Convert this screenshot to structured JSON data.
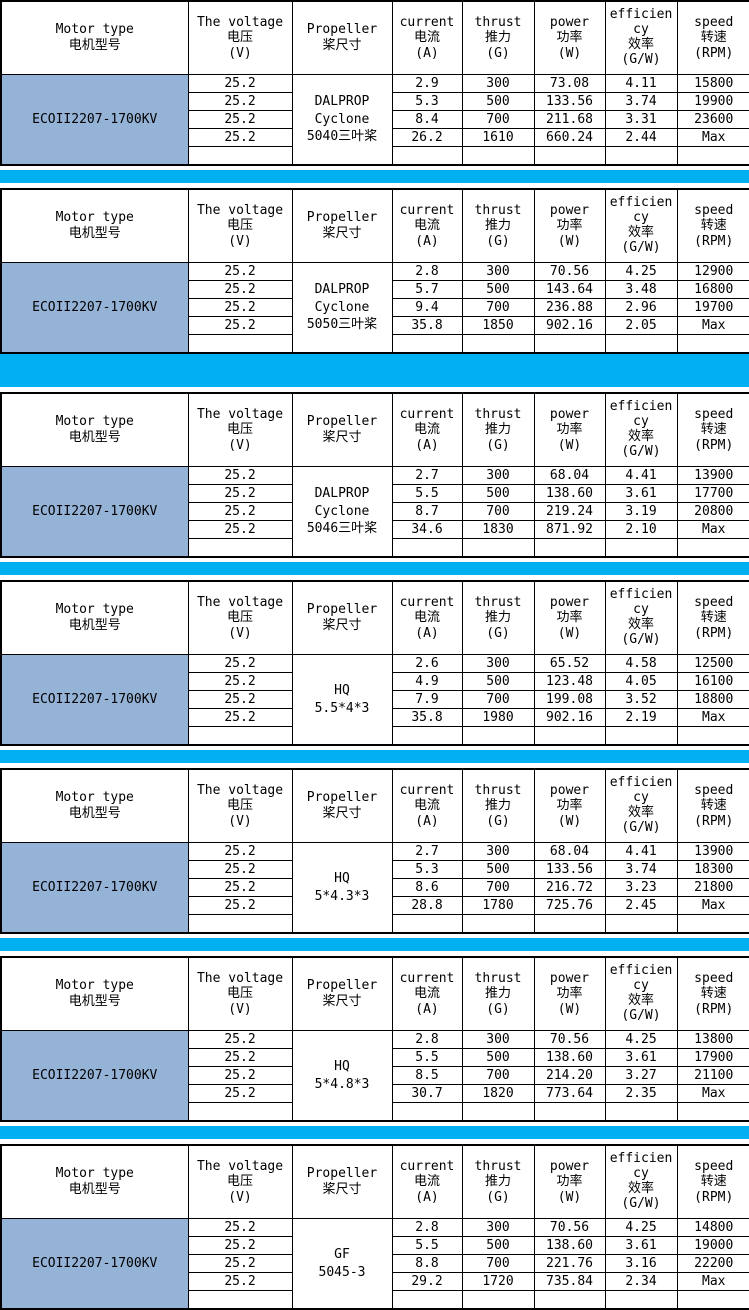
{
  "colors": {
    "separator_cyan": "#00b0f0",
    "motor_cell_blue": "#95b3d7",
    "border_black": "#000000",
    "background_white": "#ffffff"
  },
  "header": {
    "columns": [
      {
        "id": "motor",
        "lines": [
          "Motor type",
          "电机型号"
        ]
      },
      {
        "id": "voltage",
        "lines": [
          "The voltage",
          "电压",
          "(V)"
        ]
      },
      {
        "id": "propeller",
        "lines": [
          "Propeller",
          "桨尺寸"
        ]
      },
      {
        "id": "current",
        "lines": [
          "current",
          "电流",
          "(A)"
        ]
      },
      {
        "id": "thrust",
        "lines": [
          "thrust",
          "推力",
          "(G)"
        ]
      },
      {
        "id": "power",
        "lines": [
          "power",
          "功率",
          "(W)"
        ]
      },
      {
        "id": "efficiency",
        "lines": [
          "efficien",
          "cy",
          "效率",
          "(G/W)"
        ]
      },
      {
        "id": "speed",
        "lines": [
          "speed",
          "转速",
          "(RPM)"
        ]
      }
    ]
  },
  "tables": [
    {
      "motor": "ECOII2207-1700KV",
      "propeller_lines": [
        "DALPROP",
        "Cyclone",
        "5040三叶桨"
      ],
      "rows": [
        {
          "voltage": "25.2",
          "current": "2.9",
          "thrust": "300",
          "power": "73.08",
          "efficiency": "4.11",
          "speed": "15800"
        },
        {
          "voltage": "25.2",
          "current": "5.3",
          "thrust": "500",
          "power": "133.56",
          "efficiency": "3.74",
          "speed": "19900"
        },
        {
          "voltage": "25.2",
          "current": "8.4",
          "thrust": "700",
          "power": "211.68",
          "efficiency": "3.31",
          "speed": "23600"
        },
        {
          "voltage": "25.2",
          "current": "26.2",
          "thrust": "1610",
          "power": "660.24",
          "efficiency": "2.44",
          "speed": "Max"
        }
      ]
    },
    {
      "motor": "ECOII2207-1700KV",
      "propeller_lines": [
        "DALPROP",
        "Cyclone",
        "5050三叶桨"
      ],
      "rows": [
        {
          "voltage": "25.2",
          "current": "2.8",
          "thrust": "300",
          "power": "70.56",
          "efficiency": "4.25",
          "speed": "12900"
        },
        {
          "voltage": "25.2",
          "current": "5.7",
          "thrust": "500",
          "power": "143.64",
          "efficiency": "3.48",
          "speed": "16800"
        },
        {
          "voltage": "25.2",
          "current": "9.4",
          "thrust": "700",
          "power": "236.88",
          "efficiency": "2.96",
          "speed": "19700"
        },
        {
          "voltage": "25.2",
          "current": "35.8",
          "thrust": "1850",
          "power": "902.16",
          "efficiency": "2.05",
          "speed": "Max"
        }
      ]
    },
    {
      "motor": "ECOII2207-1700KV",
      "propeller_lines": [
        "DALPROP",
        "Cyclone",
        "5046三叶桨"
      ],
      "rows": [
        {
          "voltage": "25.2",
          "current": "2.7",
          "thrust": "300",
          "power": "68.04",
          "efficiency": "4.41",
          "speed": "13900"
        },
        {
          "voltage": "25.2",
          "current": "5.5",
          "thrust": "500",
          "power": "138.60",
          "efficiency": "3.61",
          "speed": "17700"
        },
        {
          "voltage": "25.2",
          "current": "8.7",
          "thrust": "700",
          "power": "219.24",
          "efficiency": "3.19",
          "speed": "20800"
        },
        {
          "voltage": "25.2",
          "current": "34.6",
          "thrust": "1830",
          "power": "871.92",
          "efficiency": "2.10",
          "speed": "Max"
        }
      ]
    },
    {
      "motor": "ECOII2207-1700KV",
      "propeller_lines": [
        "HQ",
        "5.5*4*3"
      ],
      "rows": [
        {
          "voltage": "25.2",
          "current": "2.6",
          "thrust": "300",
          "power": "65.52",
          "efficiency": "4.58",
          "speed": "12500"
        },
        {
          "voltage": "25.2",
          "current": "4.9",
          "thrust": "500",
          "power": "123.48",
          "efficiency": "4.05",
          "speed": "16100"
        },
        {
          "voltage": "25.2",
          "current": "7.9",
          "thrust": "700",
          "power": "199.08",
          "efficiency": "3.52",
          "speed": "18800"
        },
        {
          "voltage": "25.2",
          "current": "35.8",
          "thrust": "1980",
          "power": "902.16",
          "efficiency": "2.19",
          "speed": "Max"
        }
      ]
    },
    {
      "motor": "ECOII2207-1700KV",
      "propeller_lines": [
        "HQ",
        "5*4.3*3"
      ],
      "rows": [
        {
          "voltage": "25.2",
          "current": "2.7",
          "thrust": "300",
          "power": "68.04",
          "efficiency": "4.41",
          "speed": "13900"
        },
        {
          "voltage": "25.2",
          "current": "5.3",
          "thrust": "500",
          "power": "133.56",
          "efficiency": "3.74",
          "speed": "18300"
        },
        {
          "voltage": "25.2",
          "current": "8.6",
          "thrust": "700",
          "power": "216.72",
          "efficiency": "3.23",
          "speed": "21800"
        },
        {
          "voltage": "25.2",
          "current": "28.8",
          "thrust": "1780",
          "power": "725.76",
          "efficiency": "2.45",
          "speed": "Max"
        }
      ]
    },
    {
      "motor": "ECOII2207-1700KV",
      "propeller_lines": [
        "HQ",
        "5*4.8*3"
      ],
      "rows": [
        {
          "voltage": "25.2",
          "current": "2.8",
          "thrust": "300",
          "power": "70.56",
          "efficiency": "4.25",
          "speed": "13800"
        },
        {
          "voltage": "25.2",
          "current": "5.5",
          "thrust": "500",
          "power": "138.60",
          "efficiency": "3.61",
          "speed": "17900"
        },
        {
          "voltage": "25.2",
          "current": "8.5",
          "thrust": "700",
          "power": "214.20",
          "efficiency": "3.27",
          "speed": "21100"
        },
        {
          "voltage": "25.2",
          "current": "30.7",
          "thrust": "1820",
          "power": "773.64",
          "efficiency": "2.35",
          "speed": "Max"
        }
      ]
    },
    {
      "motor": "ECOII2207-1700KV",
      "propeller_lines": [
        "GF",
        "5045-3"
      ],
      "rows": [
        {
          "voltage": "25.2",
          "current": "2.8",
          "thrust": "300",
          "power": "70.56",
          "efficiency": "4.25",
          "speed": "14800"
        },
        {
          "voltage": "25.2",
          "current": "5.5",
          "thrust": "500",
          "power": "138.60",
          "efficiency": "3.61",
          "speed": "19000"
        },
        {
          "voltage": "25.2",
          "current": "8.8",
          "thrust": "700",
          "power": "221.76",
          "efficiency": "3.16",
          "speed": "22200"
        },
        {
          "voltage": "25.2",
          "current": "29.2",
          "thrust": "1720",
          "power": "735.84",
          "efficiency": "2.34",
          "speed": "Max"
        }
      ]
    }
  ]
}
